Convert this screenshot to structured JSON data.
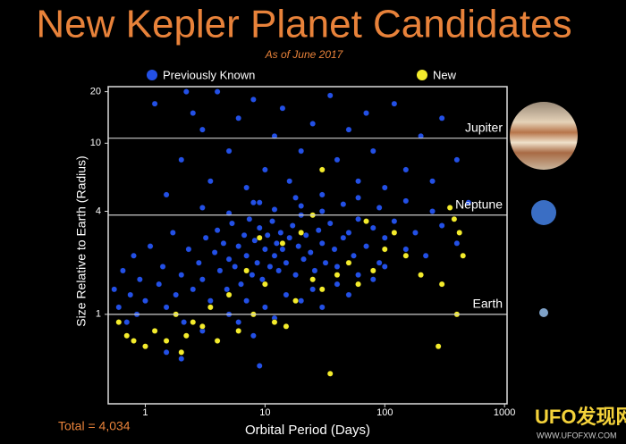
{
  "chart_data": {
    "type": "scatter",
    "title": "New Kepler Planet Candidates",
    "subtitle": "As of June 2017",
    "x_label": "Orbital Period (Days)",
    "y_label": "Size Relative to Earth (Radius)",
    "annotation": "Total = 4,034",
    "watermark": {
      "logo": "UFO发现网",
      "url": "WWW.UFOFXW.COM"
    },
    "xscale": "log",
    "yscale": "log",
    "xlim": [
      0.49,
      1050
    ],
    "ylim": [
      0.3,
      21.4
    ],
    "xticks": [
      1,
      10,
      100,
      1000
    ],
    "yticks": [
      1,
      4,
      10,
      20
    ],
    "reference_lines": [
      {
        "label": "Jupiter",
        "value": 10.7
      },
      {
        "label": "Neptune",
        "value": 3.8
      },
      {
        "label": "Earth",
        "value": 1
      }
    ],
    "series": [
      {
        "name": "Previously Known",
        "color": "#2350e6",
        "x": [
          0.55,
          0.6,
          0.65,
          0.7,
          0.75,
          0.8,
          0.85,
          0.9,
          1.0,
          1.1,
          1.2,
          1.3,
          1.4,
          1.5,
          1.7,
          1.8,
          2.0,
          2.1,
          2.3,
          2.5,
          2.8,
          3.0,
          3.2,
          3.5,
          3.8,
          4.0,
          4.2,
          4.5,
          4.8,
          5.0,
          5.3,
          5.6,
          6.0,
          6.3,
          6.7,
          7.0,
          7.4,
          7.8,
          8.2,
          8.6,
          9.0,
          9.5,
          10,
          10.5,
          11,
          11.5,
          12,
          12.5,
          13,
          13.5,
          14,
          15,
          16,
          17,
          18,
          19,
          20,
          21,
          22,
          24,
          26,
          28,
          30,
          32,
          35,
          38,
          40,
          45,
          50,
          55,
          60,
          70,
          80,
          90,
          100,
          120,
          150,
          180,
          220,
          300,
          400,
          3,
          4,
          5,
          6,
          7,
          8,
          10,
          12,
          15,
          20,
          25,
          30,
          40,
          50,
          60,
          80,
          100,
          1.5,
          2,
          9,
          1.5,
          2,
          2.5,
          3,
          3.5,
          4,
          5,
          6,
          7,
          8,
          10,
          12,
          14,
          16,
          20,
          25,
          30,
          35,
          40,
          50,
          60,
          70,
          80,
          100,
          120,
          150,
          200,
          250,
          300,
          400,
          500,
          1.2,
          2.2,
          9,
          18,
          45,
          3,
          5,
          8,
          12,
          20,
          30,
          60,
          90,
          150,
          250
        ],
        "values": [
          1.4,
          1.1,
          1.8,
          0.9,
          1.3,
          2.2,
          1.0,
          1.6,
          1.2,
          2.5,
          0.8,
          1.5,
          1.9,
          1.1,
          3.0,
          1.3,
          1.7,
          0.9,
          2.4,
          1.4,
          2.0,
          1.6,
          2.8,
          1.2,
          2.3,
          3.1,
          1.8,
          2.6,
          1.4,
          2.1,
          3.4,
          1.9,
          2.5,
          1.5,
          2.9,
          2.2,
          3.6,
          1.7,
          2.7,
          2.0,
          3.2,
          1.6,
          2.4,
          2.9,
          1.9,
          3.5,
          2.2,
          2.6,
          1.8,
          3.0,
          2.4,
          2.0,
          2.8,
          3.3,
          1.7,
          2.5,
          3.8,
          2.1,
          2.9,
          2.3,
          1.8,
          3.1,
          2.6,
          2.0,
          3.4,
          2.4,
          1.9,
          2.8,
          3.0,
          2.2,
          3.6,
          2.5,
          3.2,
          2.0,
          2.8,
          3.5,
          2.4,
          3.0,
          2.2,
          3.3,
          2.6,
          0.8,
          0.7,
          1.0,
          0.9,
          1.2,
          0.75,
          1.1,
          0.95,
          1.3,
          1.2,
          1.4,
          1.1,
          1.5,
          1.3,
          1.7,
          1.6,
          1.9,
          0.6,
          0.55,
          0.5,
          5,
          8,
          15,
          12,
          6,
          20,
          9,
          14,
          5.5,
          18,
          7,
          11,
          16,
          6,
          9,
          13,
          5,
          19,
          8,
          12,
          6,
          15,
          9,
          5.5,
          17,
          7,
          11,
          6,
          14,
          8,
          4.5,
          17,
          20,
          4.5,
          4.8,
          4.4,
          4.2,
          3.9,
          4.5,
          4.1,
          4.3,
          4.0,
          4.8,
          4.2,
          4.6,
          4.0
        ]
      },
      {
        "name": "New",
        "color": "#f4ec2c",
        "x": [
          0.6,
          0.7,
          0.8,
          1.0,
          1.2,
          1.5,
          1.8,
          2.0,
          2.2,
          2.5,
          3.0,
          3.5,
          4.0,
          5.0,
          6.0,
          7.0,
          8.0,
          10,
          12,
          14,
          18,
          20,
          25,
          30,
          35,
          40,
          50,
          60,
          70,
          80,
          100,
          150,
          200,
          280,
          300,
          350,
          380,
          400,
          420,
          450,
          30,
          25,
          120,
          9,
          15
        ],
        "values": [
          0.9,
          0.75,
          0.7,
          0.65,
          0.8,
          0.7,
          1.0,
          0.6,
          0.75,
          0.9,
          0.85,
          1.1,
          0.7,
          1.3,
          0.8,
          1.8,
          1.0,
          1.5,
          0.9,
          2.6,
          1.2,
          3.0,
          1.6,
          1.4,
          0.45,
          1.7,
          2.0,
          1.5,
          3.5,
          1.8,
          2.4,
          2.2,
          1.7,
          0.65,
          1.5,
          4.2,
          3.6,
          1.0,
          3.0,
          2.2,
          7,
          3.8,
          3.0,
          2.8,
          0.85
        ]
      }
    ]
  }
}
